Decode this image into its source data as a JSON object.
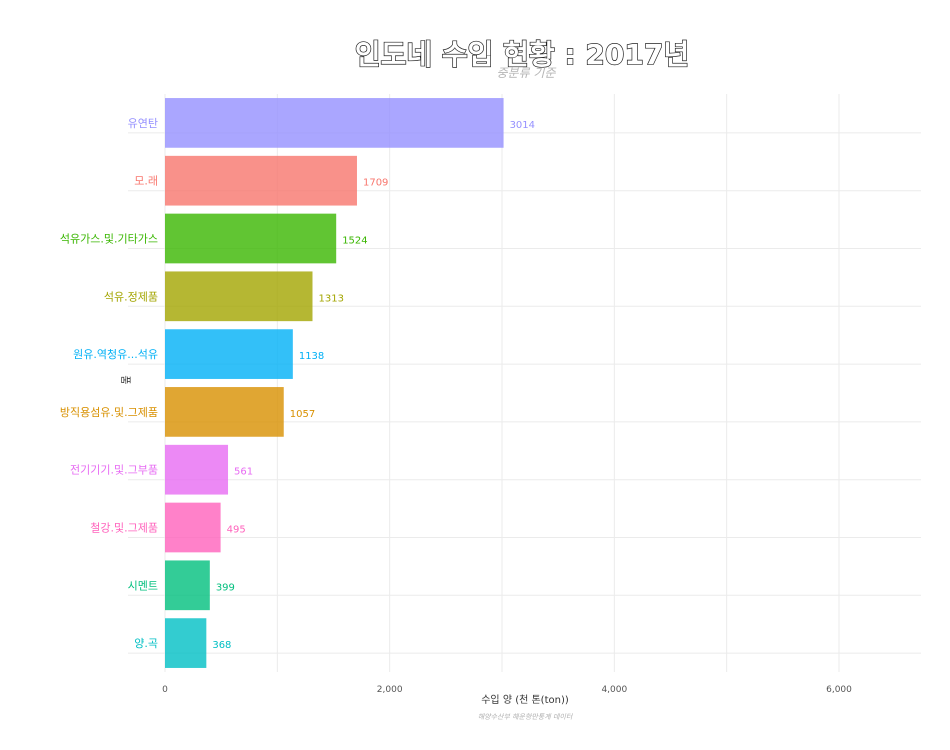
{
  "chart_data": {
    "type": "bar",
    "orientation": "horizontal",
    "title": "인도네 수입 현황 : 2017년",
    "subtitle": "중분류 기준",
    "xlabel": "수입 양 (천 톤(ton))",
    "ylabel": "품",
    "caption": "해양수산부 해운항만통계 데이터",
    "xlim": [
      0,
      6800
    ],
    "xticks": [
      0,
      2000,
      4000,
      6000
    ],
    "xtick_labels": [
      "0",
      "2,000",
      "4,000",
      "6,000"
    ],
    "grid": true,
    "legend": "none",
    "categories": [
      "유연탄",
      "모.래",
      "석유가스.및.기타가스",
      "석유.정제품",
      "원유.역청유...석유",
      "방직용섬유.및.그제품",
      "전기기기.및.그부품",
      "철강.및.그제품",
      "시멘트",
      "양.곡"
    ],
    "values": [
      3014,
      1709,
      1524,
      1313,
      1138,
      1057,
      561,
      495,
      399,
      368
    ],
    "value_labels": [
      "3014",
      "1709",
      "1524",
      "1313",
      "1138",
      "1057",
      "561",
      "495",
      "399",
      "368"
    ],
    "colors": [
      "#9590FF",
      "#F8766D",
      "#39B600",
      "#A3A500",
      "#00B0F6",
      "#D89000",
      "#E76BF3",
      "#FF62BC",
      "#00BF7D",
      "#00BFC4"
    ]
  }
}
